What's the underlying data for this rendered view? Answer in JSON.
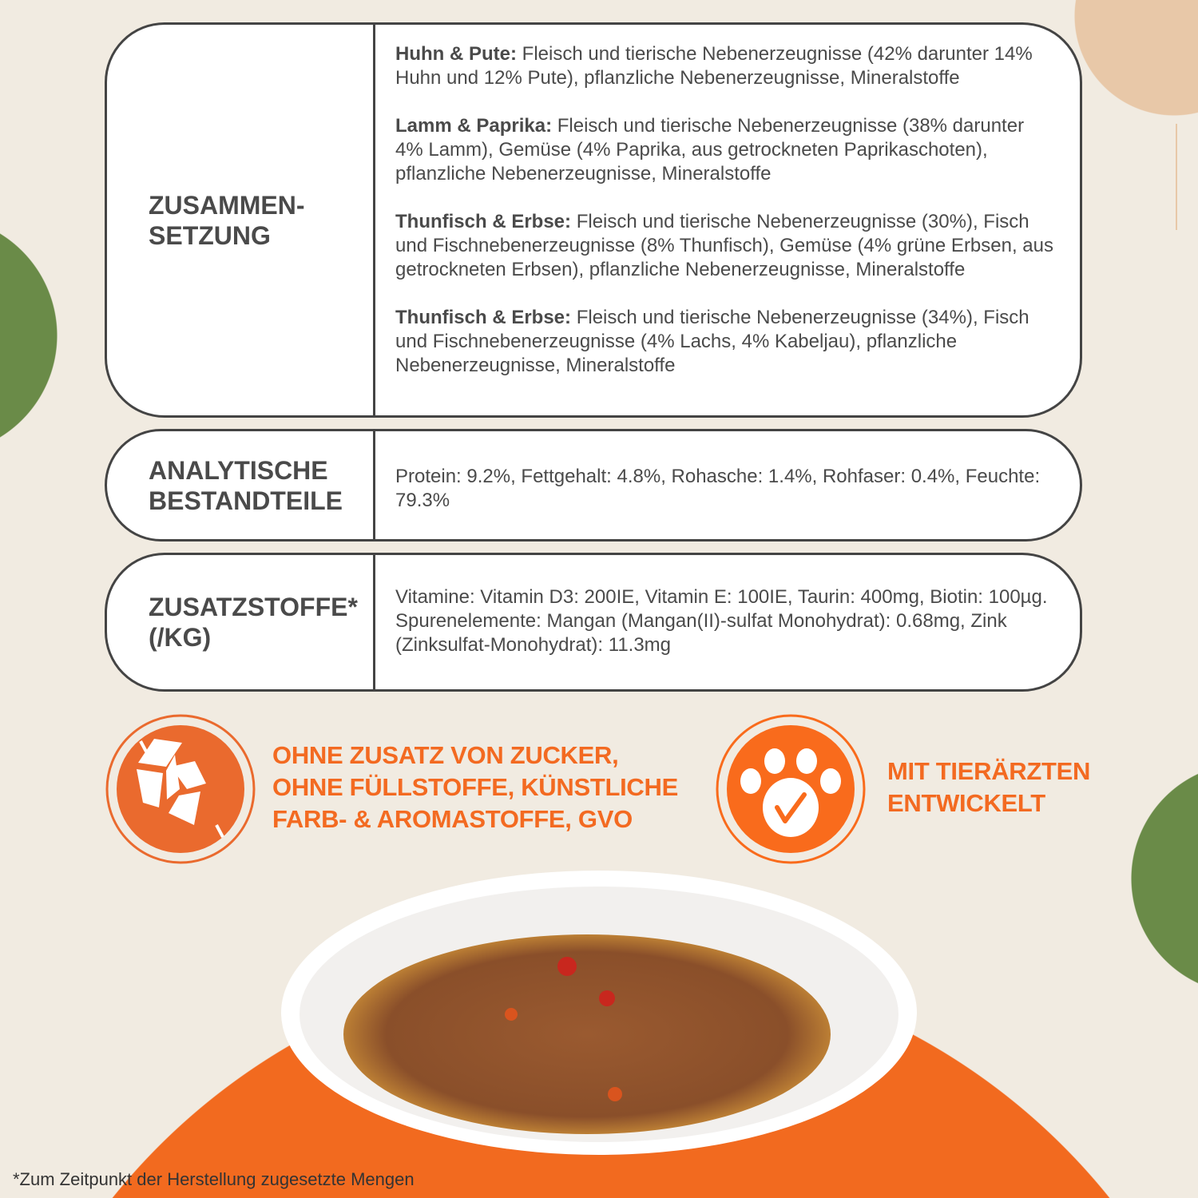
{
  "composition": {
    "heading": "ZUSAMMEN-\nSETZUNG",
    "items": [
      {
        "name": "Huhn & Pute:",
        "text": " Fleisch und tierische Nebenerzeugnisse (42% darunter 14% Huhn und 12% Pute), pflanzliche Nebenerzeugnisse, Mineralstoffe"
      },
      {
        "name": "Lamm & Paprika:",
        "text": " Fleisch und tierische Nebenerzeugnisse (38% darunter 4% Lamm), Gemüse (4% Paprika, aus getrockneten Paprikaschoten), pflanzliche Nebenerzeugnisse, Mineralstoffe"
      },
      {
        "name": "Thunfisch & Erbse:",
        "text": " Fleisch und tierische Nebenerzeugnisse (30%), Fisch und Fischnebenerzeugnisse (8% Thunfisch), Gemüse (4% grüne Erbsen, aus getrockneten Erbsen), pflanzliche Nebenerzeugnisse, Mineralstoffe"
      },
      {
        "name": "Thunfisch & Erbse:",
        "text": " Fleisch und tierische Nebenerzeugnisse (34%), Fisch und Fischnebenerzeugnisse (4% Lachs, 4% Kabeljau), pflanzliche Nebenerzeugnisse, Mineralstoffe"
      }
    ]
  },
  "analytical": {
    "heading": "ANALYTISCHE\nBESTANDTEILE",
    "text": "Protein: 9.2%, Fettgehalt: 4.8%, Rohasche: 1.4%, Rohfaser: 0.4%, Feuchte: 79.3%"
  },
  "additives": {
    "heading": "ZUSATZSTOFFE*\n(/KG)",
    "text": "Vitamine: Vitamin D3: 200IE, Vitamin E: 100IE, Taurin: 400mg, Biotin: 100µg. Spurenelemente: Mangan (Mangan(II)-sulfat Monohydrat): 0.68mg, Zink (Zinksulfat-Monohydrat): 11.3mg"
  },
  "badges": [
    {
      "icon": "no-sugar-cubes-icon",
      "text": "OHNE ZUSATZ VON ZUCKER,\nOHNE FÜLLSTOFFE, KÜNSTLICHE\nFARB- & AROMASTOFFE, GVO"
    },
    {
      "icon": "paw-check-icon",
      "text": "MIT TIERÄRZTEN\nENTWICKELT"
    }
  ],
  "footnote": "*Zum Zeitpunkt der Herstellung zugesetzte Mengen",
  "colors": {
    "background": "#f1ebe1",
    "accent": "#f36a21",
    "green": "#6a8b48",
    "peach": "#e8c8a8",
    "text": "#4a4a4a"
  }
}
